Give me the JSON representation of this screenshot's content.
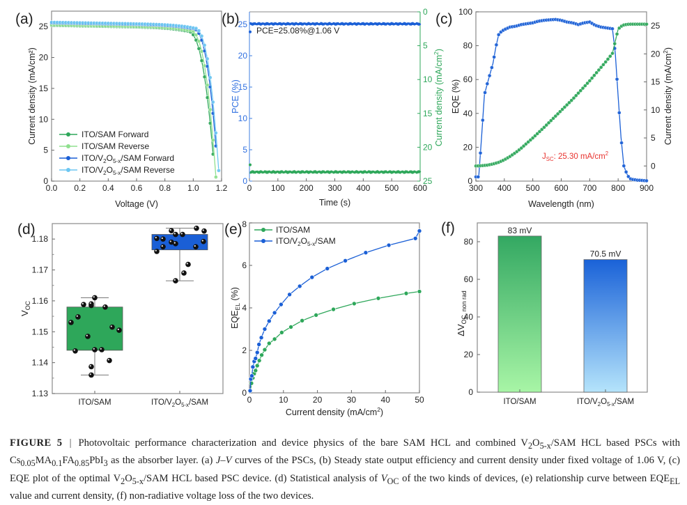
{
  "chart_data": [
    {
      "panel": "a",
      "panel_label": "(a)",
      "type": "line",
      "title": "",
      "xlabel": "Voltage (V)",
      "ylabel": "Current density (mA/cm²)",
      "xlim": [
        0.0,
        1.2
      ],
      "ylim": [
        0,
        27.5
      ],
      "xticks": [
        "0.0",
        "0.2",
        "0.4",
        "0.6",
        "0.8",
        "1.0",
        "1.2"
      ],
      "yticks": [
        "0",
        "5",
        "10",
        "15",
        "20",
        "25"
      ],
      "legend_position": "bottom-left",
      "series": [
        {
          "name": "ITO/SAM Forward",
          "legend": "ITO/SAM Forward",
          "color": "#2ea75a",
          "jsc": 25.2,
          "voc": 1.155,
          "knee": 0.95
        },
        {
          "name": "ITO/SAM Reverse",
          "legend": "ITO/SAM Reverse",
          "color": "#8fe08e",
          "jsc": 25.3,
          "voc": 1.162,
          "knee": 0.97
        },
        {
          "name": "ITO/V2O5-x/SAM Forward",
          "legend": "ITO/V₂O₅₋ₓ/SAM Forward",
          "color": "#1a5fd6",
          "jsc": 25.6,
          "voc": 1.178,
          "knee": 0.99
        },
        {
          "name": "ITO/V2O5-x/SAM Reverse",
          "legend": "ITO/V₂O₅₋ₓ/SAM Reverse",
          "color": "#6cc6f2",
          "jsc": 25.7,
          "voc": 1.185,
          "knee": 1.0
        }
      ]
    },
    {
      "panel": "b",
      "panel_label": "(b)",
      "type": "scatter",
      "xlabel": "Time (s)",
      "ylabel_left": "PCE (%)",
      "ylabel_right": "Current density (mA/cm²)",
      "xlim": [
        0,
        600
      ],
      "ylim_left": [
        0,
        27
      ],
      "ylim_right_inverted": [
        0,
        25
      ],
      "xticks": [
        "0",
        "100",
        "200",
        "300",
        "400",
        "500",
        "600"
      ],
      "yticks_left": [
        "0",
        "5",
        "10",
        "15",
        "20",
        "25"
      ],
      "yticks_right": [
        "0",
        "5",
        "10",
        "15",
        "20",
        "25"
      ],
      "annotation": "PCE=25.08%@1.06 V",
      "series": [
        {
          "name": "PCE",
          "axis": "left",
          "color": "#1a5fd6",
          "value": 25.08,
          "start_value": 23.8
        },
        {
          "name": "Current density",
          "axis": "right",
          "color": "#2ea75a",
          "value": 23.66,
          "start_value": 22.6
        }
      ]
    },
    {
      "panel": "c",
      "panel_label": "(c)",
      "type": "line",
      "xlabel": "Wavelength (nm)",
      "ylabel_left": "EQE (%)",
      "ylabel_right": "Current density (mA/cm²)",
      "xlim": [
        300,
        900
      ],
      "ylim_left": [
        0,
        100
      ],
      "ylim_right": [
        -2.7,
        27.5
      ],
      "xticks": [
        "300",
        "400",
        "500",
        "600",
        "700",
        "800",
        "900"
      ],
      "yticks_left": [
        "0",
        "20",
        "40",
        "60",
        "80",
        "100"
      ],
      "yticks_right": [
        "0",
        "5",
        "10",
        "15",
        "20",
        "25"
      ],
      "annotation": "J_SC: 25.30 mA/cm²",
      "annotation_color": "#e8322e",
      "series": [
        {
          "name": "EQE",
          "axis": "left",
          "color": "#1a5fd6",
          "x": [
            300,
            310,
            320,
            330,
            340,
            350,
            360,
            370,
            380,
            390,
            400,
            420,
            440,
            460,
            480,
            500,
            520,
            540,
            560,
            580,
            600,
            620,
            640,
            660,
            680,
            700,
            720,
            740,
            760,
            780,
            790,
            800,
            810,
            820,
            830,
            840,
            850,
            860,
            870,
            880,
            890,
            900
          ],
          "y": [
            2.5,
            2.5,
            26,
            51,
            57.5,
            63.5,
            69.5,
            79,
            86.5,
            88.5,
            89.5,
            91,
            91.5,
            92.5,
            93,
            93.5,
            94.5,
            95,
            95.3,
            95.5,
            95,
            94,
            93.5,
            92.5,
            93.5,
            94,
            92,
            91,
            90.5,
            90,
            75.5,
            50,
            26,
            9,
            4.5,
            1.5,
            1,
            0.8,
            0.5,
            0.5,
            0.3,
            0.2
          ]
        },
        {
          "name": "Integrated Jsc",
          "axis": "right",
          "color": "#2ea75a",
          "x": [
            300,
            320,
            340,
            360,
            380,
            400,
            420,
            440,
            460,
            480,
            500,
            520,
            540,
            560,
            580,
            600,
            620,
            640,
            660,
            680,
            700,
            720,
            740,
            760,
            780,
            800,
            810,
            820,
            830,
            840,
            860,
            880,
            900
          ],
          "y": [
            0,
            0.05,
            0.15,
            0.35,
            0.65,
            1.1,
            1.7,
            2.4,
            3.2,
            4.1,
            5.0,
            5.95,
            6.9,
            7.9,
            8.9,
            9.9,
            10.9,
            11.9,
            13.0,
            14.1,
            15.2,
            16.4,
            17.6,
            18.8,
            20.1,
            24.4,
            24.9,
            25.15,
            25.25,
            25.3,
            25.3,
            25.3,
            25.3
          ]
        }
      ]
    },
    {
      "panel": "d",
      "panel_label": "(d)",
      "type": "box",
      "xlabel": "",
      "ylabel": "V_OC",
      "ylim": [
        1.13,
        1.185
      ],
      "yticks": [
        "1.13",
        "1.14",
        "1.15",
        "1.16",
        "1.17",
        "1.18"
      ],
      "categories": [
        "ITO/SAM",
        "ITO/V₂O₅₋ₓ/SAM"
      ],
      "boxes": [
        {
          "name": "ITO/SAM",
          "color": "#2ea75a",
          "q1": 1.144,
          "q3": 1.158,
          "whisker_low": 1.136,
          "whisker_high": 1.161,
          "points": [
            1.161,
            1.1585,
            1.1588,
            1.159,
            1.158,
            1.1548,
            1.153,
            1.1515,
            1.1505,
            1.1485,
            1.1438,
            1.1442,
            1.1442,
            1.1407,
            1.1387,
            1.136
          ]
        },
        {
          "name": "ITO/V2O5-x/SAM",
          "color": "#1a5fd6",
          "q1": 1.1765,
          "q3": 1.1815,
          "whisker_low": 1.1665,
          "whisker_high": 1.1835,
          "points": [
            1.1835,
            1.1827,
            1.1826,
            1.1815,
            1.1815,
            1.1802,
            1.18,
            1.1792,
            1.179,
            1.1785,
            1.1775,
            1.1775,
            1.176,
            1.1718,
            1.169,
            1.1665
          ]
        }
      ]
    },
    {
      "panel": "e",
      "panel_label": "(e)",
      "type": "line",
      "xlabel": "Current density (mA/cm²)",
      "ylabel": "EQE_EL (%)",
      "xlim": [
        0,
        50
      ],
      "ylim": [
        0,
        8
      ],
      "xticks": [
        "0",
        "10",
        "20",
        "30",
        "40",
        "50"
      ],
      "yticks": [
        "0",
        "2",
        "4",
        "6",
        "8"
      ],
      "legend_position": "top-left",
      "series": [
        {
          "name": "ITO/SAM",
          "legend": "ITO/SAM",
          "color": "#2ea75a",
          "x": [
            0.3,
            0.6,
            1.0,
            1.4,
            1.8,
            2.3,
            2.9,
            3.6,
            4.5,
            5.8,
            7.4,
            9.5,
            12.2,
            15.5,
            19.6,
            24.7,
            30.8,
            37.9,
            46.1,
            50
          ],
          "y": [
            0.1,
            0.45,
            0.7,
            0.9,
            1.05,
            1.28,
            1.52,
            1.78,
            2.03,
            2.33,
            2.53,
            2.84,
            3.1,
            3.4,
            3.66,
            3.93,
            4.2,
            4.45,
            4.68,
            4.77
          ]
        },
        {
          "name": "ITO/V2O5-x/SAM",
          "legend": "ITO/V₂O₅₋ₓ/SAM",
          "color": "#1a5fd6",
          "x": [
            0.2,
            0.4,
            0.7,
            1.0,
            1.4,
            1.8,
            2.3,
            2.8,
            3.5,
            4.5,
            5.8,
            7.4,
            9.3,
            11.8,
            14.8,
            18.4,
            22.9,
            28.2,
            34.2,
            41.0,
            48.8,
            50
          ],
          "y": [
            0.1,
            0.65,
            0.8,
            1.22,
            1.48,
            1.62,
            1.9,
            2.28,
            2.6,
            3.0,
            3.38,
            3.77,
            4.16,
            4.63,
            5.02,
            5.44,
            5.85,
            6.22,
            6.6,
            6.95,
            7.27,
            7.62
          ]
        }
      ]
    },
    {
      "panel": "f",
      "panel_label": "(f)",
      "type": "bar",
      "xlabel": "",
      "ylabel": "ΔV_OC, non rad",
      "ylim": [
        0,
        90
      ],
      "yticks": [
        "0",
        "20",
        "40",
        "60",
        "80"
      ],
      "categories": [
        "ITO/SAM",
        "ITO/V₂O₅₋ₓ/SAM"
      ],
      "values": [
        83,
        70.5
      ],
      "value_labels": [
        "83 mV",
        "70.5 mV"
      ],
      "colors_top": [
        "#33a862",
        "#1a62d8"
      ],
      "colors_bottom": [
        "#a8f5a6",
        "#b5e4fb"
      ]
    }
  ],
  "caption": {
    "figure_label": "FIGURE 5",
    "separator": "|",
    "text_1": "Photovoltaic performance characterization and device physics of the bare SAM HCL and combined V",
    "text_2": "/SAM HCL based PSCs with Cs",
    "text_3": " as the absorber layer. (a) ",
    "jv": "J–V",
    "text_4": " curves of the PSCs, (b) Steady state output efficiency and current density under fixed voltage of 1.06 V, (c) EQE plot of the optimal V",
    "text_5": "/SAM HCL based PSC device. (d) Statistical analysis of ",
    "voc": "V",
    "text_6": " of the two kinds of devices, (e) relationship curve between EQE",
    "text_7": " value and current density, (f) non-radiative voltage loss of the two devices.",
    "sub_2": "2",
    "sub_5x": "5-x",
    "sub_005": "0.05",
    "ma": "MA",
    "sub_01": "0.1",
    "fa": "FA",
    "sub_085": "0.85",
    "pbi": "PbI",
    "sub_3": "3",
    "sub_oc": "OC",
    "sub_el": "EL",
    "o": "O"
  }
}
